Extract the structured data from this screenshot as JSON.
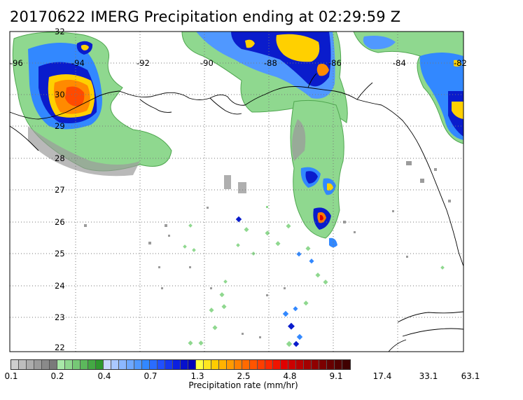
{
  "title": "20170622 IMERG Precipitation ending at 02:29:59 Z",
  "map": {
    "lon_labels": [
      "-96",
      "-94",
      "-92",
      "-90",
      "-88",
      "-86",
      "-84",
      "-82"
    ],
    "lat_labels": [
      "32",
      "30",
      "29",
      "28",
      "27",
      "26",
      "25",
      "24",
      "23",
      "22"
    ],
    "extent": {
      "lon_min": -96,
      "lon_max": -82,
      "lat_min": 21.8,
      "lat_max": 32
    },
    "grid": "dotted",
    "precip_cells": [
      {
        "lon": -94.5,
        "lat": 30.0,
        "level": "heavy"
      },
      {
        "lon": -94.4,
        "lat": 31.4,
        "level": "heavy"
      },
      {
        "lon": -87.7,
        "lat": 31.7,
        "level": "heavy"
      },
      {
        "lon": -86.4,
        "lat": 30.9,
        "level": "heavy"
      },
      {
        "lon": -86.3,
        "lat": 26.1,
        "level": "heavy"
      },
      {
        "lon": -82.2,
        "lat": 29.6,
        "level": "heavy"
      },
      {
        "lon": -86.6,
        "lat": 27.5,
        "level": "moderate"
      },
      {
        "lon": -86.0,
        "lat": 27.3,
        "level": "moderate"
      },
      {
        "lon": -87.0,
        "lat": 22.7,
        "level": "moderate"
      }
    ]
  },
  "colorbar": {
    "colors": [
      "#cfcfcf",
      "#bdbdbd",
      "#acacac",
      "#9b9b9b",
      "#8a8a8a",
      "#7a7a7a",
      "#a8e8a8",
      "#8fd88f",
      "#76c876",
      "#5cb85c",
      "#44a844",
      "#2f982f",
      "#c8d8ff",
      "#aac8ff",
      "#8cb8ff",
      "#6ea8ff",
      "#5098ff",
      "#3288ff",
      "#2a6cff",
      "#2050ff",
      "#1638f0",
      "#0c20e0",
      "#0610cc",
      "#0000b8",
      "#ffff40",
      "#ffe620",
      "#ffcc00",
      "#ffb300",
      "#ff9a00",
      "#ff8000",
      "#ff6a00",
      "#ff5400",
      "#ff3e00",
      "#ff2800",
      "#f01400",
      "#e00000",
      "#cc0000",
      "#b80000",
      "#a40000",
      "#900000",
      "#7c0000",
      "#680000",
      "#540000",
      "#400000"
    ],
    "tick_labels": [
      "0.1",
      "0.2",
      "0.4",
      "0.7",
      "1.3",
      "2.5",
      "4.8",
      "9.1",
      "17.4",
      "33.1",
      "63.1"
    ],
    "units": "Precipitation rate (mm/hr)"
  }
}
